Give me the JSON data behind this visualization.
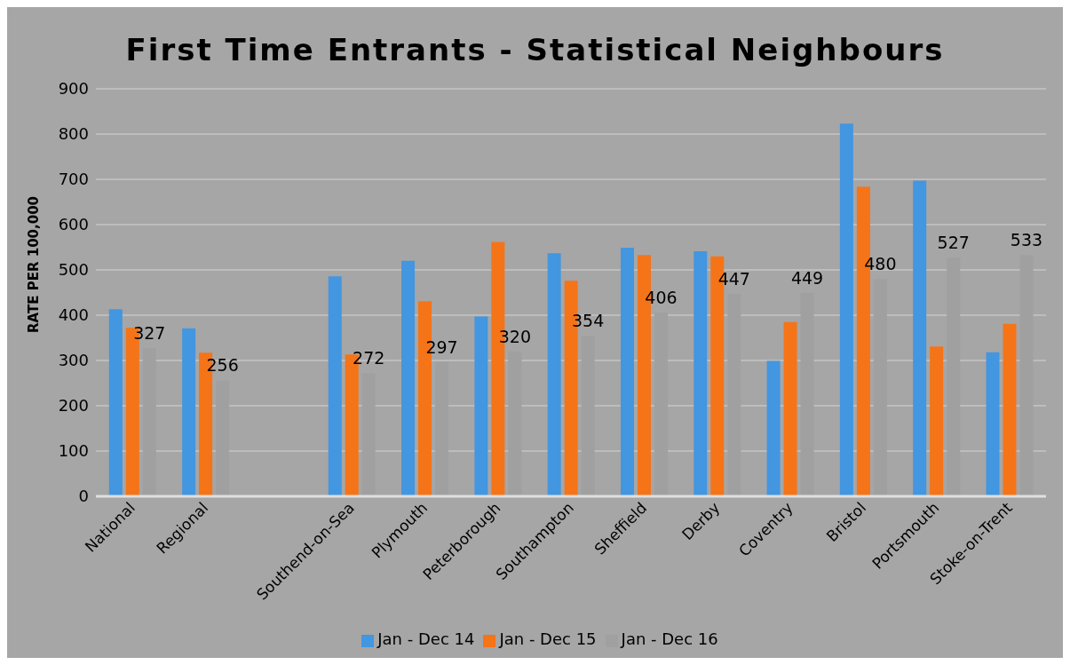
{
  "chart_data": {
    "type": "bar",
    "title": "First Time Entrants - Statistical Neighbours",
    "ylabel": "RATE PER 100,000",
    "categories": [
      "National",
      "Regional",
      null,
      "Southend-on-Sea",
      "Plymouth",
      "Peterborough",
      "Southampton",
      "Sheffield",
      "Derby",
      "Coventry",
      "Bristol",
      "Portsmouth",
      "Stoke-on-Trent"
    ],
    "series": [
      {
        "name": "Jan - Dec 14",
        "color": "#4396e0",
        "values": [
          413,
          371,
          null,
          486,
          520,
          397,
          537,
          549,
          541,
          299,
          823,
          697,
          318
        ]
      },
      {
        "name": "Jan - Dec 15",
        "color": "#f57418",
        "values": [
          372,
          317,
          null,
          313,
          431,
          562,
          476,
          533,
          530,
          385,
          684,
          331,
          381
        ]
      },
      {
        "name": "Jan - Dec 16",
        "color": "#a0a0a0",
        "values": [
          327,
          256,
          null,
          272,
          297,
          320,
          354,
          406,
          447,
          449,
          480,
          527,
          533
        ],
        "value_labels": [
          "327",
          "256",
          null,
          "272",
          "297",
          "320",
          "354",
          "406",
          "447",
          "449",
          "480",
          "527",
          "533"
        ]
      }
    ],
    "ylim": [
      0,
      900
    ],
    "yticks": [
      0,
      100,
      200,
      300,
      400,
      500,
      600,
      700,
      800,
      900
    ],
    "grid": "y",
    "legend": "bottom"
  }
}
